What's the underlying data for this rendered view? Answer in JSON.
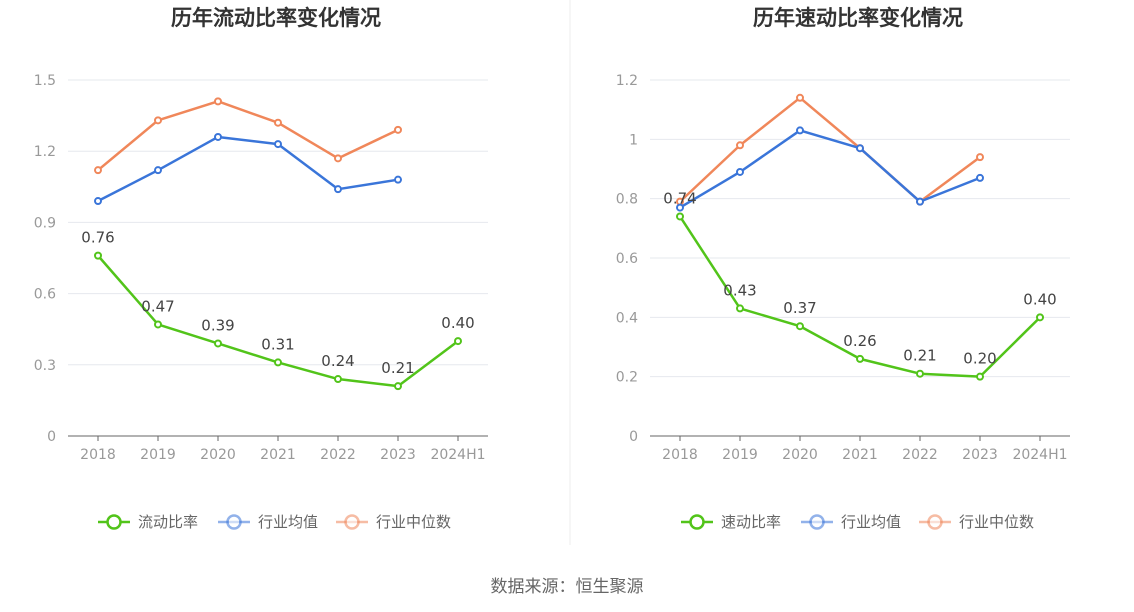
{
  "footer": {
    "source": "数据来源：恒生聚源"
  },
  "chart_data": [
    {
      "type": "line",
      "title": "历年流动比率变化情况",
      "categories": [
        "2018",
        "2019",
        "2020",
        "2021",
        "2022",
        "2023",
        "2024H1"
      ],
      "ylim": [
        0,
        1.5
      ],
      "yticks": [
        "0",
        "0.3",
        "0.6",
        "0.9",
        "1.2",
        "1.5"
      ],
      "grid": true,
      "legend_position": "bottom",
      "series": [
        {
          "name": "流动比率",
          "color": "#52c41a",
          "values": [
            0.76,
            0.47,
            0.39,
            0.31,
            0.24,
            0.21,
            0.4
          ],
          "labels": [
            "0.76",
            "0.47",
            "0.39",
            "0.31",
            "0.24",
            "0.21",
            "0.40"
          ]
        },
        {
          "name": "行业均值",
          "color": "#3a75d9",
          "values": [
            0.99,
            1.12,
            1.26,
            1.23,
            1.04,
            1.08,
            null
          ]
        },
        {
          "name": "行业中位数",
          "color": "#f0875a",
          "values": [
            1.12,
            1.33,
            1.41,
            1.32,
            1.17,
            1.29,
            null
          ]
        }
      ]
    },
    {
      "type": "line",
      "title": "历年速动比率变化情况",
      "categories": [
        "2018",
        "2019",
        "2020",
        "2021",
        "2022",
        "2023",
        "2024H1"
      ],
      "ylim": [
        0,
        1.2
      ],
      "yticks": [
        "0",
        "0.2",
        "0.4",
        "0.6",
        "0.8",
        "1",
        "1.2"
      ],
      "grid": true,
      "legend_position": "bottom",
      "series": [
        {
          "name": "速动比率",
          "color": "#52c41a",
          "values": [
            0.74,
            0.43,
            0.37,
            0.26,
            0.21,
            0.2,
            0.4
          ],
          "labels": [
            "0.74",
            "0.43",
            "0.37",
            "0.26",
            "0.21",
            "0.20",
            "0.40"
          ]
        },
        {
          "name": "行业均值",
          "color": "#3a75d9",
          "values": [
            0.77,
            0.89,
            1.03,
            0.97,
            0.79,
            0.87,
            null
          ]
        },
        {
          "name": "行业中位数",
          "color": "#f0875a",
          "values": [
            0.79,
            0.98,
            1.14,
            0.97,
            0.79,
            0.94,
            null
          ]
        }
      ]
    }
  ]
}
